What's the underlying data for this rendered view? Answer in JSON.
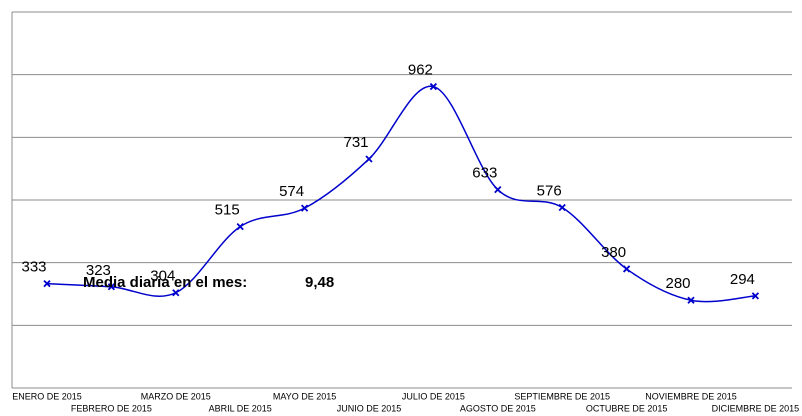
{
  "chart_data": {
    "type": "line",
    "categories": [
      "ENERO DE 2015",
      "FEBRERO DE 2015",
      "MARZO DE 2015",
      "ABRIL DE 2015",
      "MAYO DE 2015",
      "JUNIO DE 2015",
      "JULIO DE 2015",
      "AGOSTO DE 2015",
      "SEPTIEMBRE DE 2015",
      "OCTUBRE DE 2015",
      "NOVIEMBRE DE 2015",
      "DICIEMBRE DE 2015"
    ],
    "values": [
      333,
      323,
      304,
      515,
      574,
      731,
      962,
      633,
      576,
      380,
      280,
      294
    ],
    "color": "#0000cc",
    "ylim": [
      0,
      1200
    ],
    "yticks": [
      0,
      200,
      400,
      600,
      800,
      1000,
      1200
    ],
    "grid": true,
    "annotation": {
      "label": "Media diaria en el mes:",
      "value": "9,48"
    }
  }
}
